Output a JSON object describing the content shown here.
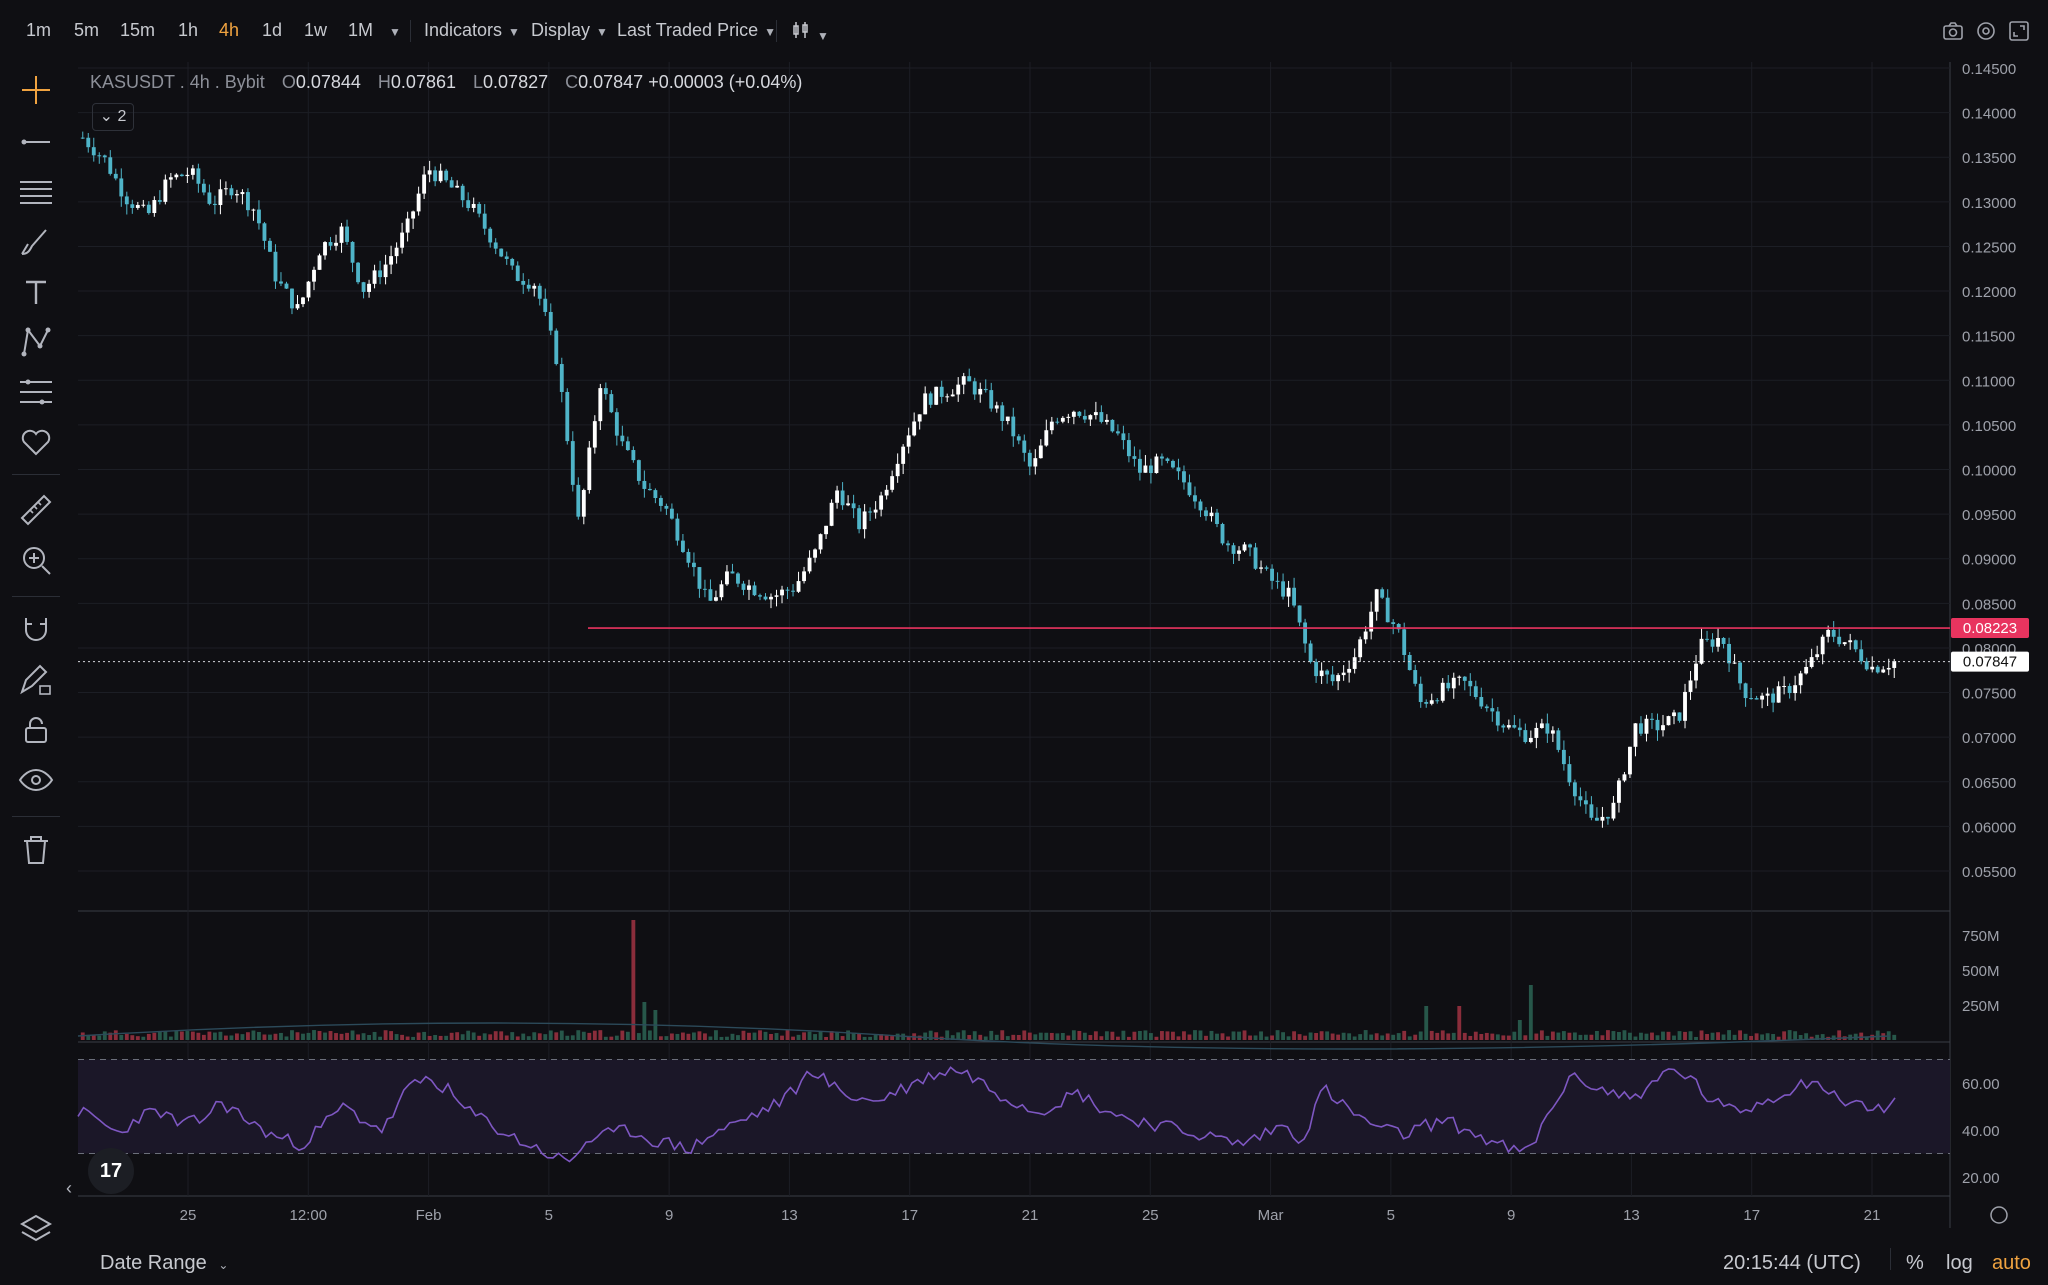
{
  "toolbar": {
    "timeframes": [
      {
        "label": "1m",
        "active": false
      },
      {
        "label": "5m",
        "active": false
      },
      {
        "label": "15m",
        "active": false
      },
      {
        "label": "1h",
        "active": false
      },
      {
        "label": "4h",
        "active": true
      },
      {
        "label": "1d",
        "active": false
      },
      {
        "label": "1w",
        "active": false
      },
      {
        "label": "1M",
        "active": false
      }
    ],
    "indicators_label": "Indicators",
    "display_label": "Display",
    "price_source_label": "Last Traded Price",
    "right_icons": [
      "camera-icon",
      "settings-icon",
      "fullscreen-icon"
    ]
  },
  "left_tools": [
    "crosshair-icon",
    "trend-line-icon",
    "horizontal-lines-icon",
    "brush-icon",
    "text-icon",
    "pattern-icon",
    "fib-icon",
    "heart-icon",
    "ruler-icon",
    "zoom-in-icon",
    "magnet-icon",
    "lock-draw-icon",
    "unlock-icon",
    "eye-icon",
    "trash-icon",
    "layers-icon"
  ],
  "legend": {
    "symbol": "KASUSDT",
    "interval": "4h",
    "exchange": "Bybit",
    "o_label": "O",
    "o": "0.07844",
    "h_label": "H",
    "h": "0.07861",
    "l_label": "L",
    "l": "0.07827",
    "c_label": "C",
    "c": "0.07847",
    "change": "+0.00003 (+0.04%)",
    "collapse_count": "2"
  },
  "colors": {
    "bg": "#0f0f13",
    "up": "#ffffff",
    "down": "#4fb4c8",
    "level_line": "#e8345f",
    "rsi": "#7e57c2",
    "grid": "#1c1e25"
  },
  "chart_data": {
    "type": "candlestick",
    "price_axis": [
      "0.14500",
      "0.14000",
      "0.13500",
      "0.13000",
      "0.12500",
      "0.12000",
      "0.11500",
      "0.11000",
      "0.10500",
      "0.10000",
      "0.09500",
      "0.09000",
      "0.08500",
      "0.08000",
      "0.07500",
      "0.07000",
      "0.06500",
      "0.06000",
      "0.05500"
    ],
    "time_axis": [
      "25",
      "12:00",
      "Feb",
      "5",
      "9",
      "13",
      "17",
      "21",
      "25",
      "Mar",
      "5",
      "9",
      "13",
      "17",
      "21"
    ],
    "last_price": "0.07847",
    "horizontal_level": "0.08223",
    "price_path": [
      0.1372,
      0.1348,
      0.1305,
      0.1284,
      0.1325,
      0.1333,
      0.1298,
      0.1318,
      0.129,
      0.1212,
      0.1178,
      0.1248,
      0.1268,
      0.1202,
      0.1228,
      0.1268,
      0.1338,
      0.1318,
      0.1295,
      0.1258,
      0.1218,
      0.1208,
      0.1122,
      0.0938,
      0.1098,
      0.1028,
      0.0982,
      0.0958,
      0.0908,
      0.0848,
      0.0882,
      0.0868,
      0.0858,
      0.0868,
      0.0908,
      0.0978,
      0.0938,
      0.0968,
      0.1028,
      0.1078,
      0.1088,
      0.1098,
      0.1078,
      0.1048,
      0.0998,
      0.1058,
      0.1068,
      0.1058,
      0.1038,
      0.0998,
      0.1008,
      0.0988,
      0.0958,
      0.0918,
      0.0908,
      0.0878,
      0.0858,
      0.0778,
      0.0762,
      0.0792,
      0.0858,
      0.0818,
      0.0738,
      0.0752,
      0.0762,
      0.0738,
      0.0712,
      0.0702,
      0.0712,
      0.0652,
      0.0602,
      0.0622,
      0.0712,
      0.0712,
      0.0722,
      0.0802,
      0.0812,
      0.0752,
      0.0742,
      0.0752,
      0.0778,
      0.0818,
      0.0802,
      0.0778,
      0.0785
    ],
    "volume_axis": [
      "750M",
      "500M",
      "250M"
    ],
    "rsi_axis": [
      "60.00",
      "40.00",
      "20.00"
    ],
    "rsi_path": [
      48,
      44,
      38,
      46,
      48,
      42,
      44,
      52,
      46,
      40,
      36,
      34,
      42,
      50,
      44,
      40,
      56,
      62,
      58,
      48,
      44,
      38,
      34,
      30,
      26,
      36,
      38,
      40,
      36,
      34,
      32,
      38,
      42,
      46,
      50,
      56,
      66,
      58,
      54,
      52,
      56,
      60,
      64,
      66,
      62,
      56,
      52,
      48,
      52,
      56,
      50,
      46,
      44,
      42,
      40,
      38,
      36,
      34,
      38,
      42,
      36,
      58,
      50,
      44,
      40,
      38,
      42,
      44,
      40,
      36,
      32,
      30,
      46,
      62,
      60,
      56,
      54,
      58,
      66,
      62,
      52,
      48,
      50,
      54,
      58,
      62,
      54,
      52,
      48,
      52
    ]
  },
  "bottom": {
    "date_range_label": "Date Range",
    "clock": "20:15:44 (UTC)",
    "percent_label": "%",
    "log_label": "log",
    "auto_label": "auto",
    "tv_logo": "17"
  }
}
